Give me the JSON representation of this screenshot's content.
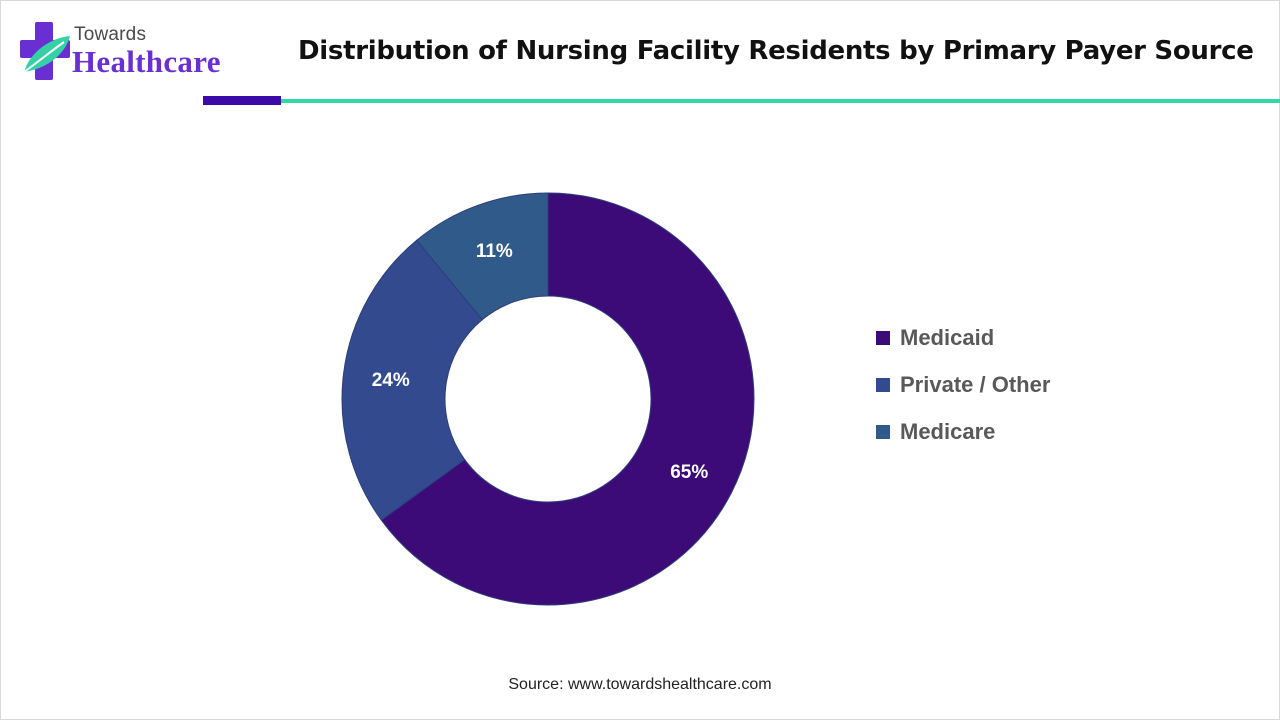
{
  "brand": {
    "top": "Towards",
    "main": "Healthcare"
  },
  "header": {
    "title": "Distribution of Nursing Facility Residents by Primary Payer Source"
  },
  "colors": {
    "medicaid": "#3c0b77",
    "private_other": "#344a8e",
    "medicare": "#2f5a8a",
    "accent_dark": "#3b0aa8",
    "accent_teal": "#33d6a8"
  },
  "chart_data": {
    "type": "pie",
    "variant": "donut",
    "categories": [
      "Medicaid",
      "Private / Other",
      "Medicare"
    ],
    "values": [
      65,
      24,
      11
    ],
    "labels": [
      "65%",
      "24%",
      "11%"
    ],
    "legend_position": "right"
  },
  "legend": {
    "items": [
      {
        "label": "Medicaid"
      },
      {
        "label": "Private / Other"
      },
      {
        "label": "Medicare"
      }
    ]
  },
  "footer": {
    "source": "Source: www.towardshealthcare.com"
  }
}
